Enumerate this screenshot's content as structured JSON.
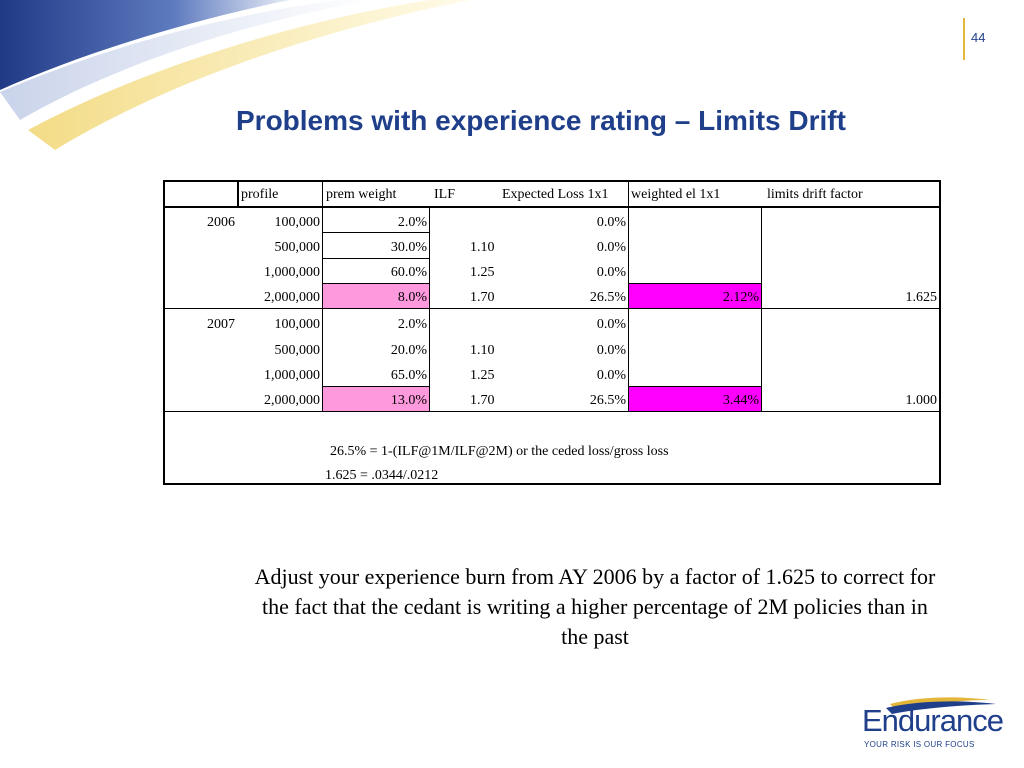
{
  "slide": {
    "page_number": "44",
    "title": "Problems with experience rating – Limits Drift",
    "body_text": "Adjust your experience burn from AY 2006 by a factor of 1.625 to correct for the fact that the cedant is writing a higher percentage of 2M policies than in the past"
  },
  "table": {
    "headers": {
      "profile": "profile",
      "prem_weight": "prem weight",
      "ilf": "ILF",
      "expected_loss": "Expected Loss 1x1",
      "weighted_el": "weighted el 1x1",
      "limits_drift": "limits drift factor"
    },
    "groups": [
      {
        "year": "2006",
        "limits_drift_factor": "1.625",
        "rows": [
          {
            "profile": "100,000",
            "prem_weight": "2.0%",
            "ilf": "",
            "expected_loss": "0.0%",
            "weighted_el": ""
          },
          {
            "profile": "500,000",
            "prem_weight": "30.0%",
            "ilf": "1.10",
            "expected_loss": "0.0%",
            "weighted_el": ""
          },
          {
            "profile": "1,000,000",
            "prem_weight": "60.0%",
            "ilf": "1.25",
            "expected_loss": "0.0%",
            "weighted_el": ""
          },
          {
            "profile": "2,000,000",
            "prem_weight": "8.0%",
            "ilf": "1.70",
            "expected_loss": "26.5%",
            "weighted_el": "2.12%"
          }
        ]
      },
      {
        "year": "2007",
        "limits_drift_factor": "1.000",
        "rows": [
          {
            "profile": "100,000",
            "prem_weight": "2.0%",
            "ilf": "",
            "expected_loss": "0.0%",
            "weighted_el": ""
          },
          {
            "profile": "500,000",
            "prem_weight": "20.0%",
            "ilf": "1.10",
            "expected_loss": "0.0%",
            "weighted_el": ""
          },
          {
            "profile": "1,000,000",
            "prem_weight": "65.0%",
            "ilf": "1.25",
            "expected_loss": "0.0%",
            "weighted_el": ""
          },
          {
            "profile": "2,000,000",
            "prem_weight": "13.0%",
            "ilf": "1.70",
            "expected_loss": "26.5%",
            "weighted_el": "3.44%"
          }
        ]
      }
    ],
    "notes": [
      "26.5% = 1-(ILF@1M/ILF@2M) or the ceded loss/gross loss",
      "1.625 = .0344/.0212"
    ],
    "colors": {
      "highlight_pink": "#ff99dd",
      "highlight_magenta": "#ff00ff"
    }
  },
  "logo": {
    "name": "Endurance",
    "tagline": "YOUR RISK IS OUR FOCUS",
    "color": "#1f3f8a"
  },
  "theme": {
    "title_color": "#1f3f8a",
    "accent_gold": "#e3b63a"
  }
}
